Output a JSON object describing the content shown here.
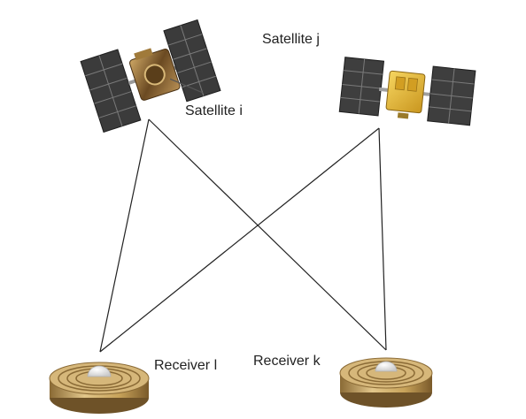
{
  "satellites": {
    "i": {
      "label": "Satellite i"
    },
    "j": {
      "label": "Satellite j"
    }
  },
  "receivers": {
    "l": {
      "label": "Receiver l"
    },
    "k": {
      "label": "Receiver k"
    }
  },
  "colors": {
    "line": "#222222",
    "panel": "#3b3b3b",
    "panel_cell": "#6f6f6f",
    "sat_body_i": "#7a5a2a",
    "sat_body_j": "#e0b530",
    "receiver_gold": "#c8a35a",
    "receiver_dark": "#8a6a35",
    "dome": "#f2f2f2"
  }
}
